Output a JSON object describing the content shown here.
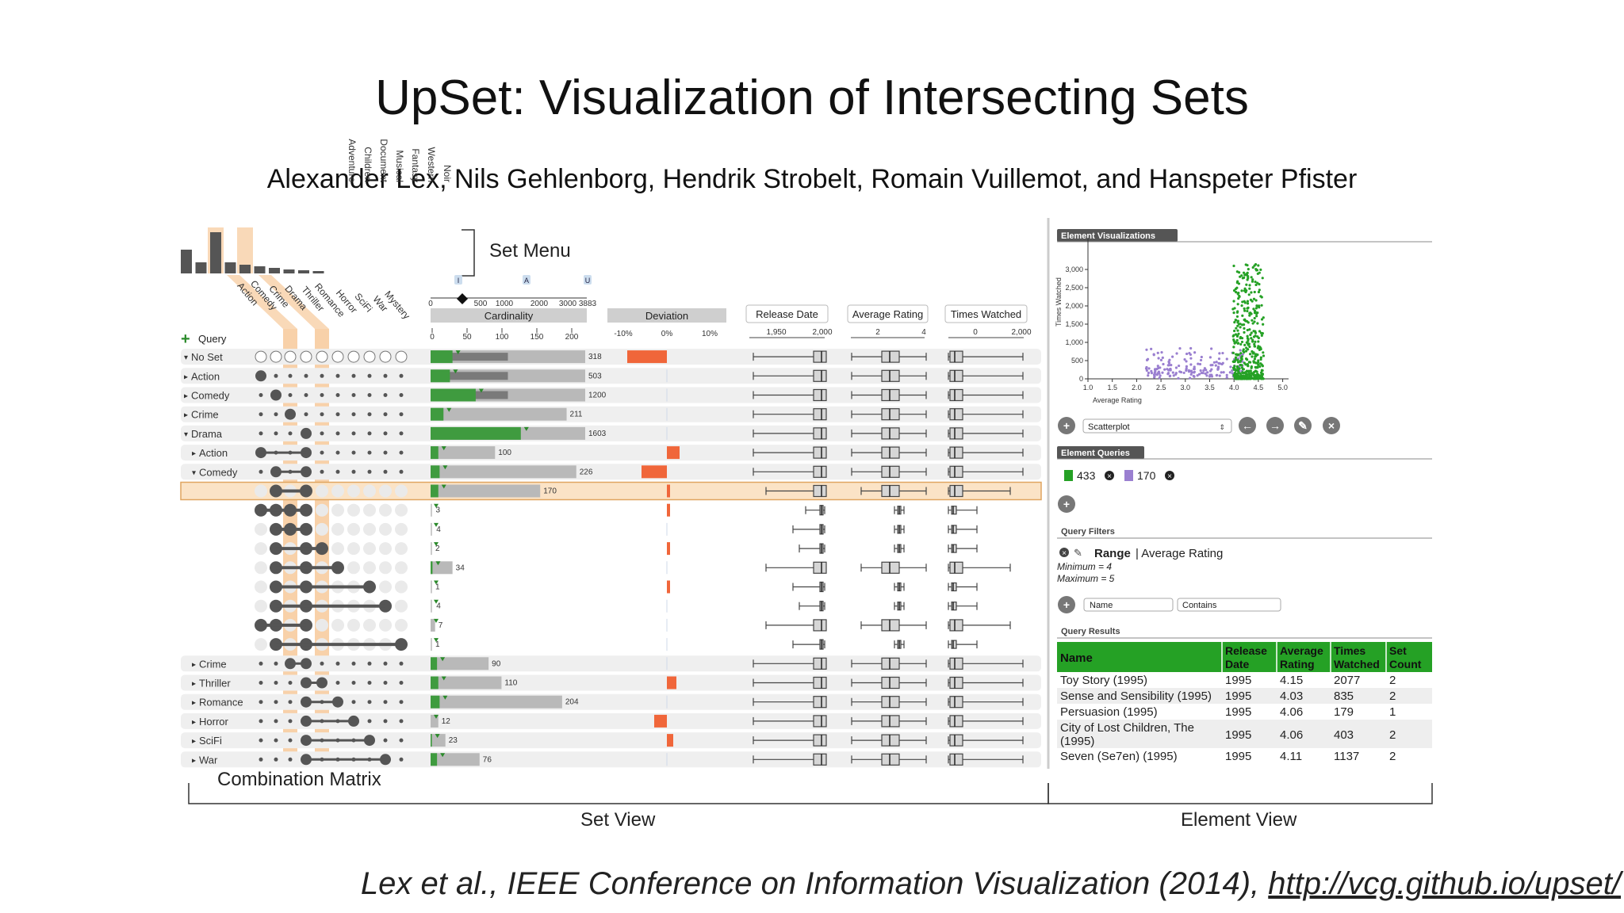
{
  "slide": {
    "title": "UpSet: Visualization of Intersecting Sets",
    "authors": "Alexander Lex, Nils Gehlenborg, Hendrik Strobelt, Romain Vuillemot, and Hanspeter Pfister",
    "citation": "Lex et al., IEEE Conference on Information Visualization (2014), ",
    "citation_link": "http://vcg.github.io/upset/"
  },
  "annotations": {
    "set_menu": "Set Menu",
    "combination_matrix": "Combination Matrix",
    "set_view": "Set View",
    "element_view": "Element View"
  },
  "colors": {
    "selected_set": "#f7c99a",
    "bar_green": "#3f9b3f",
    "bar_gray": "#b9b9b9",
    "deviation_red": "#f0663a",
    "highlight_row": "#fbe3c6",
    "purple": "#9a7fd0",
    "table_header": "#25a125"
  },
  "set_view": {
    "set_names": [
      "Action",
      "Adventure",
      "Children",
      "Comedy",
      "Crime",
      "Document",
      "Drama",
      "Fantasy",
      "Musical",
      "Romance",
      "Thriller",
      "Noir",
      "Horror",
      "Western",
      "SciFi",
      "Mystery",
      "War"
    ],
    "vertical_set_labels": [
      "Noir",
      "Western",
      "Fantasy",
      "Musical",
      "Document",
      "Children",
      "Adventure"
    ],
    "diagonal_set_labels": [
      "Action",
      "Comedy",
      "Crime",
      "Drama",
      "Thriller",
      "Romance",
      "Horror",
      "SciFi",
      "War",
      "Mystery"
    ],
    "set_size_bars": [
      30,
      14,
      52,
      14,
      11,
      9,
      7,
      5,
      4,
      3
    ],
    "query_label": "Query",
    "plus_icon": "+",
    "tiny_letters": [
      "I",
      "A",
      "U"
    ],
    "cardinality_scale_top": [
      "0",
      "500",
      "1000",
      "2000",
      "3000",
      "3883"
    ],
    "cardinality_label": "Cardinality",
    "cardinality_scale": [
      "0",
      "50",
      "100",
      "150",
      "200"
    ],
    "deviation_label": "Deviation",
    "deviation_scale": [
      "-10%",
      "0%",
      "10%"
    ],
    "attribute_headers": [
      {
        "label": "Release Date",
        "ticks": [
          "1,950",
          "2,000"
        ]
      },
      {
        "label": "Average Rating",
        "ticks": [
          "2",
          "4"
        ]
      },
      {
        "label": "Times Watched",
        "ticks": [
          "0",
          "2,000"
        ]
      }
    ],
    "rows": [
      {
        "label": "No Set",
        "caret": "▾",
        "kind": "group",
        "dots": [],
        "empty": true,
        "card": 318,
        "green": 34,
        "dev": -8,
        "dev_w": 50
      },
      {
        "label": "Action",
        "caret": "▸",
        "kind": "group",
        "dots": [
          0
        ],
        "card": 503,
        "green": 30,
        "dev": 0
      },
      {
        "label": "Comedy",
        "caret": "▸",
        "kind": "group",
        "dots": [
          1
        ],
        "card": 1200,
        "green": 70,
        "dev": 0
      },
      {
        "label": "Crime",
        "caret": "▸",
        "kind": "group",
        "dots": [
          2
        ],
        "card": 211,
        "green": 20,
        "dev": 0
      },
      {
        "label": "Drama",
        "caret": "▾",
        "kind": "group",
        "dots": [
          3
        ],
        "card": 1603,
        "green": 140,
        "dev": 0
      },
      {
        "label": "Action",
        "caret": "▸",
        "kind": "sub",
        "dots": [
          0,
          3
        ],
        "card": 100,
        "green": 12,
        "dev": 4
      },
      {
        "label": "Comedy",
        "caret": "▾",
        "kind": "sub",
        "dots": [
          1,
          3
        ],
        "card": 226,
        "green": 14,
        "dev": -8
      },
      {
        "label": "",
        "kind": "combo",
        "dots": [
          1,
          3
        ],
        "card": 170,
        "green": 12,
        "dev": 1,
        "highlight": true
      },
      {
        "label": "",
        "kind": "combo",
        "dots": [
          0,
          1,
          2,
          3
        ],
        "card": 3,
        "green": 0,
        "dev": 1
      },
      {
        "label": "",
        "kind": "combo",
        "dots": [
          1,
          2,
          3
        ],
        "card": 4,
        "green": 0,
        "dev": 0
      },
      {
        "label": "",
        "kind": "combo",
        "dots": [
          1,
          3,
          4
        ],
        "card": 2,
        "green": 0,
        "dev": 1
      },
      {
        "label": "",
        "kind": "combo",
        "dots": [
          1,
          3,
          5
        ],
        "card": 34,
        "green": 3,
        "dev": 0
      },
      {
        "label": "",
        "kind": "combo",
        "dots": [
          1,
          3,
          7
        ],
        "card": 1,
        "green": 0,
        "dev": 1
      },
      {
        "label": "",
        "kind": "combo",
        "dots": [
          1,
          3,
          8
        ],
        "card": 4,
        "green": 0,
        "dev": 0
      },
      {
        "label": "",
        "kind": "combo",
        "dots": [
          0,
          1,
          3
        ],
        "card": 7,
        "green": 0,
        "dev": 0
      },
      {
        "label": "",
        "kind": "combo",
        "dots": [
          1,
          3,
          9
        ],
        "card": 1,
        "green": 0,
        "dev": 0
      },
      {
        "label": "Crime",
        "caret": "▸",
        "kind": "sub",
        "dots": [
          2,
          3
        ],
        "card": 90,
        "green": 10,
        "dev": 0
      },
      {
        "label": "Thriller",
        "caret": "▸",
        "kind": "sub",
        "dots": [
          3,
          4
        ],
        "card": 110,
        "green": 12,
        "dev": 3
      },
      {
        "label": "Romance",
        "caret": "▸",
        "kind": "sub",
        "dots": [
          3,
          5
        ],
        "card": 204,
        "green": 14,
        "dev": 0
      },
      {
        "label": "Horror",
        "caret": "▸",
        "kind": "sub",
        "dots": [
          3,
          6
        ],
        "card": 12,
        "green": 0,
        "dev": -4
      },
      {
        "label": "SciFi",
        "caret": "▸",
        "kind": "sub",
        "dots": [
          3,
          7
        ],
        "card": 23,
        "green": 2,
        "dev": 2
      },
      {
        "label": "War",
        "caret": "▸",
        "kind": "sub",
        "dots": [
          3,
          8
        ],
        "card": 76,
        "green": 10,
        "dev": 0
      }
    ]
  },
  "element_view": {
    "vis_tab": "Element Visualizations",
    "scatter": {
      "ylabel": "Times Watched",
      "xlabel": "Average Rating",
      "yticks": [
        "0",
        "500",
        "1,000",
        "1,500",
        "2,000",
        "2,500",
        "3,000"
      ],
      "xticks": [
        "1.0",
        "1.5",
        "2.0",
        "2.5",
        "3.0",
        "3.5",
        "4.0",
        "4.5",
        "5.0"
      ]
    },
    "vis_select": "Scatterplot",
    "queries_tab": "Element Queries",
    "query_chips": [
      {
        "count": "433",
        "color": "#25a125"
      },
      {
        "count": "170",
        "color": "#9a7fd0"
      }
    ],
    "filters_title": "Query Filters",
    "filter_name": "Range",
    "filter_attr": "Average Rating",
    "filter_min": "Minimum = 4",
    "filter_max": "Maximum = 5",
    "filter_field": "Name",
    "filter_op": "Contains",
    "results_title": "Query Results",
    "table_headers": [
      "Name",
      "Release Date",
      "Average Rating",
      "Times Watched",
      "Set Count"
    ],
    "table_rows": [
      [
        "Toy Story (1995)",
        "1995",
        "4.15",
        "2077",
        "2"
      ],
      [
        "Sense and Sensibility (1995)",
        "1995",
        "4.03",
        "835",
        "2"
      ],
      [
        "Persuasion (1995)",
        "1995",
        "4.06",
        "179",
        "1"
      ],
      [
        "City of Lost Children, The (1995)",
        "1995",
        "4.06",
        "403",
        "2"
      ],
      [
        "Seven (Se7en) (1995)",
        "1995",
        "4.11",
        "1137",
        "2"
      ]
    ]
  }
}
